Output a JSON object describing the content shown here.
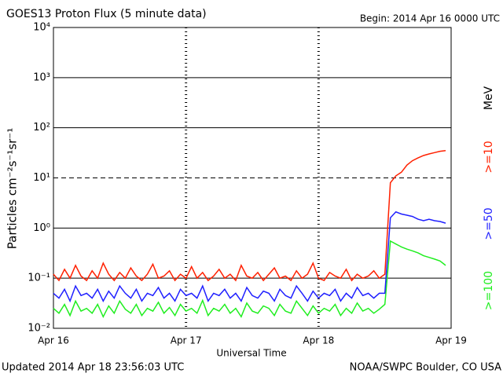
{
  "chart_data": {
    "type": "line",
    "title": "GOES13 Proton Flux (5 minute data)",
    "subtitle": "Begin: 2014 Apr 16 0000 UTC",
    "x_label": "Universal Time",
    "y_label": "Particles cm⁻²s⁻¹sr⁻¹",
    "legend_unit": "MeV",
    "footer_left": "Updated 2014 Apr 18 23:56:03 UTC",
    "footer_right": "NOAA/SWPC Boulder, CO USA",
    "log_y": true,
    "grid": true,
    "threshold": 10,
    "xlim": [
      0,
      72
    ],
    "xticks": [
      {
        "value": 0,
        "label": "Apr 16"
      },
      {
        "value": 24,
        "label": "Apr 17"
      },
      {
        "value": 48,
        "label": "Apr 18"
      },
      {
        "value": 72,
        "label": "Apr 19"
      }
    ],
    "ylim": [
      0.01,
      10000
    ],
    "yticks": [
      {
        "value": 0.01,
        "label": "10⁻²"
      },
      {
        "value": 0.1,
        "label": "10⁻¹"
      },
      {
        "value": 1,
        "label": "10⁰"
      },
      {
        "value": 10,
        "label": "10¹"
      },
      {
        "value": 100,
        "label": "10²"
      },
      {
        "value": 1000,
        "label": "10³"
      },
      {
        "value": 10000,
        "label": "10⁴"
      }
    ],
    "x": [
      0,
      1,
      2,
      3,
      4,
      5,
      6,
      7,
      8,
      9,
      10,
      11,
      12,
      13,
      14,
      15,
      16,
      17,
      18,
      19,
      20,
      21,
      22,
      23,
      24,
      25,
      26,
      27,
      28,
      29,
      30,
      31,
      32,
      33,
      34,
      35,
      36,
      37,
      38,
      39,
      40,
      41,
      42,
      43,
      44,
      45,
      46,
      47,
      48,
      49,
      50,
      51,
      52,
      53,
      54,
      55,
      56,
      57,
      58,
      59,
      60,
      61,
      62,
      63,
      64,
      65,
      66,
      67,
      68,
      69,
      70,
      71
    ],
    "series": [
      {
        "name": ">=10",
        "color": "#ff2000",
        "values": [
          0.12,
          0.09,
          0.15,
          0.1,
          0.18,
          0.11,
          0.09,
          0.14,
          0.1,
          0.2,
          0.12,
          0.09,
          0.13,
          0.1,
          0.16,
          0.11,
          0.09,
          0.12,
          0.19,
          0.1,
          0.11,
          0.14,
          0.09,
          0.12,
          0.1,
          0.17,
          0.1,
          0.13,
          0.09,
          0.11,
          0.15,
          0.1,
          0.12,
          0.09,
          0.18,
          0.11,
          0.1,
          0.13,
          0.09,
          0.12,
          0.16,
          0.1,
          0.11,
          0.09,
          0.14,
          0.1,
          0.12,
          0.2,
          0.1,
          0.09,
          0.13,
          0.11,
          0.1,
          0.15,
          0.09,
          0.12,
          0.1,
          0.11,
          0.14,
          0.1,
          0.12,
          8,
          11,
          13,
          18,
          22,
          25,
          28,
          30,
          32,
          34,
          35
        ]
      },
      {
        "name": ">=50",
        "color": "#2020ff",
        "values": [
          0.05,
          0.04,
          0.06,
          0.035,
          0.07,
          0.045,
          0.05,
          0.04,
          0.06,
          0.035,
          0.055,
          0.04,
          0.07,
          0.05,
          0.04,
          0.06,
          0.035,
          0.05,
          0.045,
          0.065,
          0.04,
          0.05,
          0.035,
          0.06,
          0.045,
          0.05,
          0.04,
          0.07,
          0.035,
          0.05,
          0.045,
          0.06,
          0.04,
          0.05,
          0.035,
          0.065,
          0.045,
          0.04,
          0.055,
          0.05,
          0.035,
          0.06,
          0.045,
          0.04,
          0.07,
          0.05,
          0.035,
          0.055,
          0.04,
          0.05,
          0.045,
          0.06,
          0.035,
          0.05,
          0.04,
          0.065,
          0.045,
          0.05,
          0.04,
          0.05,
          0.05,
          1.6,
          2.1,
          1.9,
          1.8,
          1.7,
          1.5,
          1.4,
          1.5,
          1.4,
          1.35,
          1.25
        ]
      },
      {
        "name": ">=100",
        "color": "#20ee20",
        "values": [
          0.025,
          0.02,
          0.03,
          0.018,
          0.035,
          0.022,
          0.025,
          0.02,
          0.03,
          0.017,
          0.028,
          0.02,
          0.035,
          0.024,
          0.02,
          0.03,
          0.018,
          0.025,
          0.022,
          0.033,
          0.02,
          0.026,
          0.018,
          0.03,
          0.022,
          0.025,
          0.02,
          0.036,
          0.018,
          0.025,
          0.022,
          0.03,
          0.02,
          0.025,
          0.017,
          0.032,
          0.022,
          0.02,
          0.028,
          0.025,
          0.018,
          0.03,
          0.022,
          0.02,
          0.035,
          0.025,
          0.018,
          0.028,
          0.02,
          0.025,
          0.022,
          0.03,
          0.018,
          0.025,
          0.02,
          0.032,
          0.022,
          0.025,
          0.02,
          0.024,
          0.03,
          0.55,
          0.48,
          0.42,
          0.38,
          0.35,
          0.32,
          0.28,
          0.26,
          0.24,
          0.22,
          0.18
        ]
      }
    ]
  }
}
